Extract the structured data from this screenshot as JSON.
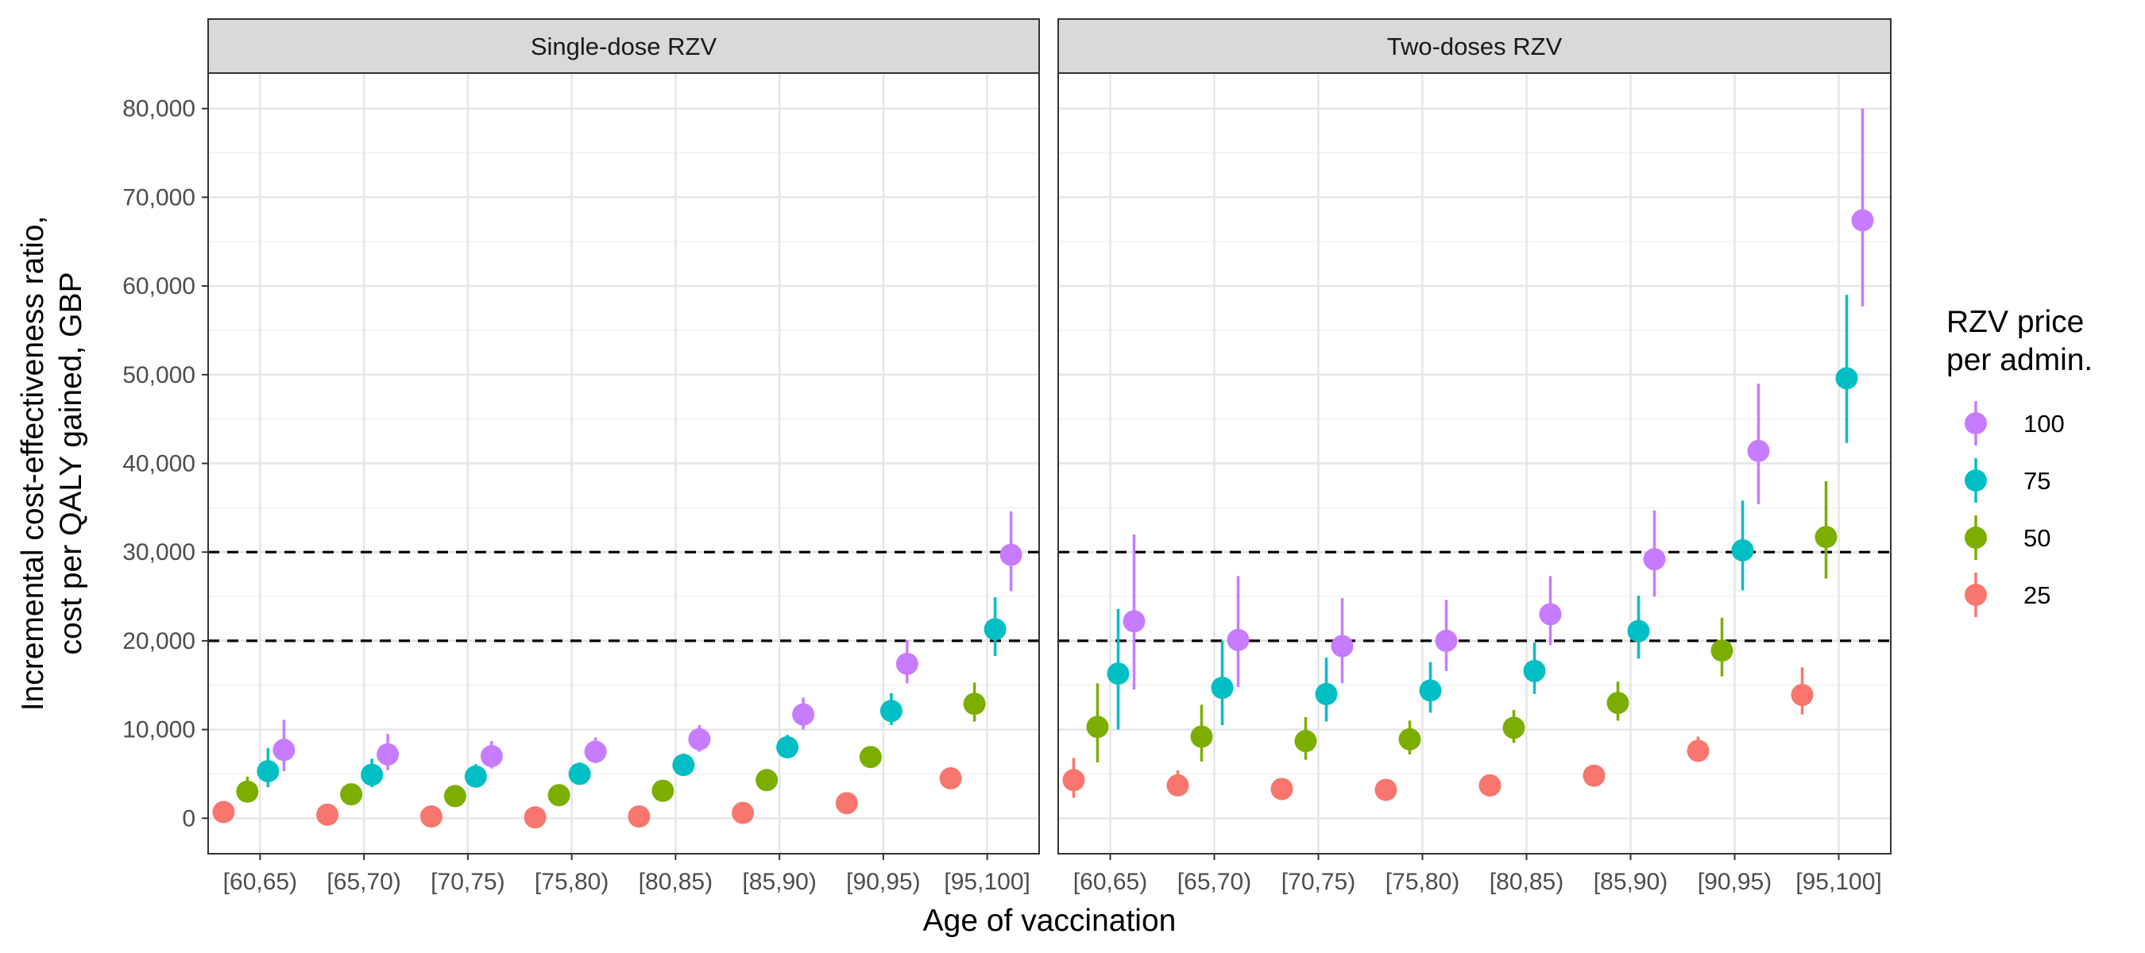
{
  "chart_data": {
    "type": "scatter",
    "facets": [
      "Single-dose RZV",
      "Two-doses RZV"
    ],
    "categories": [
      "[60,65)",
      "[65,70)",
      "[70,75)",
      "[75,80)",
      "[80,85)",
      "[85,90)",
      "[90,95)",
      "[95,100]"
    ],
    "xlabel": "Age of vaccination",
    "ylabel_lines": [
      "Incremental cost-effectiveness ratio,",
      "cost per QALY gained, GBP"
    ],
    "ylim": [
      -4000,
      84000
    ],
    "yticks": [
      0,
      10000,
      20000,
      30000,
      40000,
      50000,
      60000,
      70000,
      80000
    ],
    "ytick_labels": [
      "0",
      "10,000",
      "20,000",
      "30,000",
      "40,000",
      "50,000",
      "60,000",
      "70,000",
      "80,000"
    ],
    "reference_lines": [
      20000,
      30000
    ],
    "grid": true,
    "legend": {
      "title_lines": [
        "RZV price",
        "per admin."
      ],
      "position": "right",
      "entries": [
        {
          "label": "100",
          "color": "#C77CFF"
        },
        {
          "label": "75",
          "color": "#00BFC4"
        },
        {
          "label": "50",
          "color": "#7CAE00"
        },
        {
          "label": "25",
          "color": "#F8766D"
        }
      ]
    },
    "series": [
      {
        "name": "25",
        "color": "#F8766D",
        "points": {
          "Single-dose RZV": [
            {
              "y": 700,
              "lo": 300,
              "hi": 1300
            },
            {
              "y": 400,
              "lo": 100,
              "hi": 900
            },
            {
              "y": 200,
              "lo": 0,
              "hi": 700
            },
            {
              "y": 100,
              "lo": 0,
              "hi": 600
            },
            {
              "y": 200,
              "lo": 0,
              "hi": 700
            },
            {
              "y": 600,
              "lo": 200,
              "hi": 1200
            },
            {
              "y": 1700,
              "lo": 1100,
              "hi": 2400
            },
            {
              "y": 4500,
              "lo": 3700,
              "hi": 5400
            }
          ],
          "Two-doses RZV": [
            {
              "y": 4300,
              "lo": 2300,
              "hi": 6800
            },
            {
              "y": 3700,
              "lo": 2500,
              "hi": 5400
            },
            {
              "y": 3300,
              "lo": 2400,
              "hi": 4500
            },
            {
              "y": 3200,
              "lo": 2400,
              "hi": 4400
            },
            {
              "y": 3700,
              "lo": 2800,
              "hi": 4900
            },
            {
              "y": 4800,
              "lo": 4000,
              "hi": 5900
            },
            {
              "y": 7600,
              "lo": 6500,
              "hi": 9200
            },
            {
              "y": 13900,
              "lo": 11700,
              "hi": 17000
            }
          ]
        }
      },
      {
        "name": "50",
        "color": "#7CAE00",
        "points": {
          "Single-dose RZV": [
            {
              "y": 3000,
              "lo": 1900,
              "hi": 4700
            },
            {
              "y": 2700,
              "lo": 1800,
              "hi": 3800
            },
            {
              "y": 2500,
              "lo": 1800,
              "hi": 3500
            },
            {
              "y": 2600,
              "lo": 1900,
              "hi": 3500
            },
            {
              "y": 3100,
              "lo": 2300,
              "hi": 4100
            },
            {
              "y": 4300,
              "lo": 3500,
              "hi": 5300
            },
            {
              "y": 6900,
              "lo": 5900,
              "hi": 8100
            },
            {
              "y": 12900,
              "lo": 10900,
              "hi": 15300
            }
          ],
          "Two-doses RZV": [
            {
              "y": 10300,
              "lo": 6300,
              "hi": 15200
            },
            {
              "y": 9200,
              "lo": 6400,
              "hi": 12800
            },
            {
              "y": 8700,
              "lo": 6600,
              "hi": 11400
            },
            {
              "y": 8900,
              "lo": 7200,
              "hi": 11000
            },
            {
              "y": 10200,
              "lo": 8500,
              "hi": 12200
            },
            {
              "y": 13000,
              "lo": 11000,
              "hi": 15400
            },
            {
              "y": 18900,
              "lo": 16000,
              "hi": 22600
            },
            {
              "y": 31700,
              "lo": 27000,
              "hi": 38000
            }
          ]
        }
      },
      {
        "name": "75",
        "color": "#00BFC4",
        "points": {
          "Single-dose RZV": [
            {
              "y": 5300,
              "lo": 3500,
              "hi": 7900
            },
            {
              "y": 4900,
              "lo": 3500,
              "hi": 6700
            },
            {
              "y": 4700,
              "lo": 3500,
              "hi": 6100
            },
            {
              "y": 5000,
              "lo": 3900,
              "hi": 6300
            },
            {
              "y": 6000,
              "lo": 4800,
              "hi": 7300
            },
            {
              "y": 8000,
              "lo": 6800,
              "hi": 9400
            },
            {
              "y": 12100,
              "lo": 10500,
              "hi": 14100
            },
            {
              "y": 21300,
              "lo": 18300,
              "hi": 24900
            }
          ],
          "Two-doses RZV": [
            {
              "y": 16300,
              "lo": 10000,
              "hi": 23600
            },
            {
              "y": 14700,
              "lo": 10500,
              "hi": 20000
            },
            {
              "y": 14000,
              "lo": 10900,
              "hi": 18100
            },
            {
              "y": 14400,
              "lo": 11900,
              "hi": 17600
            },
            {
              "y": 16600,
              "lo": 14000,
              "hi": 19800
            },
            {
              "y": 21100,
              "lo": 18000,
              "hi": 25100
            },
            {
              "y": 30200,
              "lo": 25700,
              "hi": 35800
            },
            {
              "y": 49600,
              "lo": 42300,
              "hi": 59000
            }
          ]
        }
      },
      {
        "name": "100",
        "color": "#C77CFF",
        "points": {
          "Single-dose RZV": [
            {
              "y": 7700,
              "lo": 5300,
              "hi": 11100
            },
            {
              "y": 7200,
              "lo": 5400,
              "hi": 9500
            },
            {
              "y": 7000,
              "lo": 5600,
              "hi": 8700
            },
            {
              "y": 7500,
              "lo": 6200,
              "hi": 9100
            },
            {
              "y": 8900,
              "lo": 7500,
              "hi": 10500
            },
            {
              "y": 11700,
              "lo": 10000,
              "hi": 13600
            },
            {
              "y": 17400,
              "lo": 15200,
              "hi": 20100
            },
            {
              "y": 29700,
              "lo": 25600,
              "hi": 34600
            }
          ],
          "Two-doses RZV": [
            {
              "y": 22200,
              "lo": 14500,
              "hi": 32000
            },
            {
              "y": 20100,
              "lo": 14800,
              "hi": 27300
            },
            {
              "y": 19400,
              "lo": 15200,
              "hi": 24800
            },
            {
              "y": 20000,
              "lo": 16600,
              "hi": 24600
            },
            {
              "y": 23000,
              "lo": 19500,
              "hi": 27300
            },
            {
              "y": 29200,
              "lo": 25000,
              "hi": 34700
            },
            {
              "y": 41400,
              "lo": 35400,
              "hi": 49000
            },
            {
              "y": 67400,
              "lo": 57700,
              "hi": 80000
            }
          ]
        }
      }
    ]
  }
}
